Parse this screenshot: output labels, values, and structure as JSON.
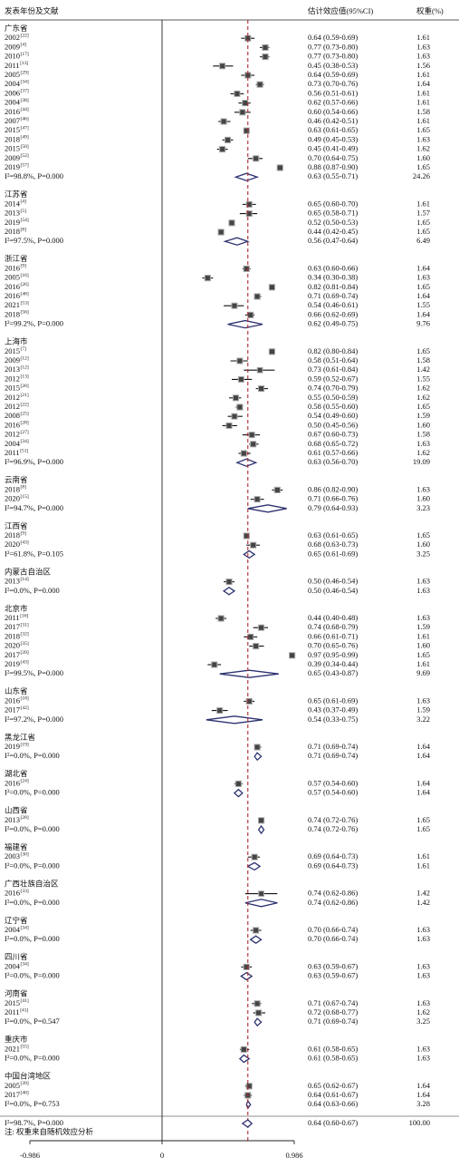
{
  "chart_data": {
    "type": "forest",
    "headers": {
      "study": "发表年份及文献",
      "effect": "估计效应值(95%CI)",
      "weight": "权重(%)"
    },
    "xlim": [
      -0.986,
      0.986
    ],
    "xticks": [
      -0.986,
      0,
      0.986
    ],
    "groups": [
      {
        "name": "广东省",
        "studies": [
          {
            "label": "2002",
            "ref": "[22]",
            "est": 0.64,
            "lo": 0.59,
            "hi": 0.69,
            "ci": "0.64 (0.59-0.69)",
            "weight": 1.61
          },
          {
            "label": "2009",
            "ref": "[4]",
            "est": 0.77,
            "lo": 0.73,
            "hi": 0.8,
            "ci": "0.77 (0.73-0.80)",
            "weight": 1.63
          },
          {
            "label": "2010",
            "ref": "[17]",
            "est": 0.77,
            "lo": 0.73,
            "hi": 0.8,
            "ci": "0.77 (0.73-0.80)",
            "weight": 1.63
          },
          {
            "label": "2011",
            "ref": "[13]",
            "est": 0.45,
            "lo": 0.38,
            "hi": 0.53,
            "ci": "0.45 (0.38-0.53)",
            "weight": 1.56
          },
          {
            "label": "2005",
            "ref": "[29]",
            "est": 0.64,
            "lo": 0.59,
            "hi": 0.69,
            "ci": "0.64 (0.59-0.69)",
            "weight": 1.61
          },
          {
            "label": "2004",
            "ref": "[34]",
            "est": 0.73,
            "lo": 0.7,
            "hi": 0.76,
            "ci": "0.73 (0.70-0.76)",
            "weight": 1.64
          },
          {
            "label": "2006",
            "ref": "[37]",
            "est": 0.56,
            "lo": 0.51,
            "hi": 0.61,
            "ci": "0.56 (0.51-0.61)",
            "weight": 1.61
          },
          {
            "label": "2004",
            "ref": "[38]",
            "est": 0.62,
            "lo": 0.57,
            "hi": 0.66,
            "ci": "0.62 (0.57-0.66)",
            "weight": 1.61
          },
          {
            "label": "2016",
            "ref": "[44]",
            "est": 0.6,
            "lo": 0.54,
            "hi": 0.66,
            "ci": "0.60 (0.54-0.66)",
            "weight": 1.58
          },
          {
            "label": "2007",
            "ref": "[46]",
            "est": 0.46,
            "lo": 0.42,
            "hi": 0.51,
            "ci": "0.46 (0.42-0.51)",
            "weight": 1.61
          },
          {
            "label": "2015",
            "ref": "[47]",
            "est": 0.63,
            "lo": 0.61,
            "hi": 0.65,
            "ci": "0.63 (0.61-0.65)",
            "weight": 1.65
          },
          {
            "label": "2018",
            "ref": "[49]",
            "est": 0.49,
            "lo": 0.45,
            "hi": 0.53,
            "ci": "0.49 (0.45-0.53)",
            "weight": 1.63
          },
          {
            "label": "2015",
            "ref": "[50]",
            "est": 0.45,
            "lo": 0.41,
            "hi": 0.49,
            "ci": "0.45 (0.41-0.49)",
            "weight": 1.62
          },
          {
            "label": "2009",
            "ref": "[52]",
            "est": 0.7,
            "lo": 0.64,
            "hi": 0.75,
            "ci": "0.70 (0.64-0.75)",
            "weight": 1.6,
            "weight_label": "1.60"
          },
          {
            "label": "2019",
            "ref": "[57]",
            "est": 0.88,
            "lo": 0.87,
            "hi": 0.9,
            "ci": "0.88 (0.87-0.90)",
            "weight": 1.65
          }
        ],
        "summary": {
          "het": "I²=98.8%, P=0.000",
          "est": 0.63,
          "lo": 0.55,
          "hi": 0.71,
          "ci": "0.63 (0.55-0.71)",
          "weight": 24.26
        }
      },
      {
        "name": "江苏省",
        "studies": [
          {
            "label": "2014",
            "ref": "[4]",
            "est": 0.65,
            "lo": 0.6,
            "hi": 0.7,
            "ci": "0.65 (0.60-0.70)",
            "weight": 1.61
          },
          {
            "label": "2013",
            "ref": "[5]",
            "est": 0.65,
            "lo": 0.58,
            "hi": 0.71,
            "ci": "0.65 (0.58-0.71)",
            "weight": 1.57
          },
          {
            "label": "2019",
            "ref": "[54]",
            "est": 0.52,
            "lo": 0.5,
            "hi": 0.53,
            "ci": "0.52 (0.50-0.53)",
            "weight": 1.65
          },
          {
            "label": "2018",
            "ref": "[8]",
            "est": 0.44,
            "lo": 0.42,
            "hi": 0.45,
            "ci": "0.44 (0.42-0.45)",
            "weight": 1.65
          }
        ],
        "summary": {
          "het": "I²=97.5%, P=0.000",
          "est": 0.56,
          "lo": 0.47,
          "hi": 0.64,
          "ci": "0.56 (0.47-0.64)",
          "weight": 6.49
        }
      },
      {
        "name": "浙江省",
        "studies": [
          {
            "label": "2016",
            "ref": "[9]",
            "est": 0.63,
            "lo": 0.6,
            "hi": 0.66,
            "ci": "0.63 (0.60-0.66)",
            "weight": 1.64
          },
          {
            "label": "2005",
            "ref": "[16]",
            "est": 0.34,
            "lo": 0.3,
            "hi": 0.38,
            "ci": "0.34 (0.30-0.38)",
            "weight": 1.63
          },
          {
            "label": "2016",
            "ref": "[26]",
            "est": 0.82,
            "lo": 0.81,
            "hi": 0.84,
            "ci": "0.82 (0.81-0.84)",
            "weight": 1.65
          },
          {
            "label": "2016",
            "ref": "[48]",
            "est": 0.71,
            "lo": 0.69,
            "hi": 0.74,
            "ci": "0.71 (0.69-0.74)",
            "weight": 1.64
          },
          {
            "label": "2021",
            "ref": "[53]",
            "est": 0.54,
            "lo": 0.46,
            "hi": 0.61,
            "ci": "0.54 (0.46-0.61)",
            "weight": 1.55
          },
          {
            "label": "2018",
            "ref": "[56]",
            "est": 0.66,
            "lo": 0.62,
            "hi": 0.69,
            "ci": "0.66 (0.62-0.69)",
            "weight": 1.64
          }
        ],
        "summary": {
          "het": "I²=99.2%, P=0.000",
          "est": 0.62,
          "lo": 0.49,
          "hi": 0.75,
          "ci": "0.62 (0.49-0.75)",
          "weight": 9.76
        }
      },
      {
        "name": "上海市",
        "studies": [
          {
            "label": "2015",
            "ref": "[7]",
            "est": 0.82,
            "lo": 0.8,
            "hi": 0.84,
            "ci": "0.82 (0.80-0.84)",
            "weight": 1.65
          },
          {
            "label": "2009",
            "ref": "[12]",
            "est": 0.58,
            "lo": 0.51,
            "hi": 0.64,
            "ci": "0.58 (0.51-0.64)",
            "weight": 1.58
          },
          {
            "label": "2013",
            "ref": "[12]",
            "est": 0.73,
            "lo": 0.61,
            "hi": 0.84,
            "ci": "0.73 (0.61-0.84)",
            "weight": 1.42
          },
          {
            "label": "2012",
            "ref": "[13]",
            "est": 0.59,
            "lo": 0.52,
            "hi": 0.67,
            "ci": "0.59 (0.52-0.67)",
            "weight": 1.55
          },
          {
            "label": "2015",
            "ref": "[20]",
            "est": 0.74,
            "lo": 0.7,
            "hi": 0.79,
            "ci": "0.74 (0.70-0.79)",
            "weight": 1.62
          },
          {
            "label": "2012",
            "ref": "[21]",
            "est": 0.55,
            "lo": 0.5,
            "hi": 0.59,
            "ci": "0.55 (0.50-0.59)",
            "weight": 1.62
          },
          {
            "label": "2012",
            "ref": "[22]",
            "est": 0.58,
            "lo": 0.55,
            "hi": 0.6,
            "ci": "0.58 (0.55-0.60)",
            "weight": 1.65
          },
          {
            "label": "2008",
            "ref": "[25]",
            "est": 0.54,
            "lo": 0.49,
            "hi": 0.6,
            "ci": "0.54 (0.49-0.60)",
            "weight": 1.59
          },
          {
            "label": "2016",
            "ref": "[28]",
            "est": 0.5,
            "lo": 0.45,
            "hi": 0.56,
            "ci": "0.50 (0.45-0.56)",
            "weight": 1.6,
            "weight_label": "1.60"
          },
          {
            "label": "2012",
            "ref": "[27]",
            "est": 0.67,
            "lo": 0.6,
            "hi": 0.73,
            "ci": "0.67 (0.60-0.73)",
            "weight": 1.58
          },
          {
            "label": "2004",
            "ref": "[34]",
            "est": 0.68,
            "lo": 0.65,
            "hi": 0.72,
            "ci": "0.68 (0.65-0.72)",
            "weight": 1.63
          },
          {
            "label": "2011",
            "ref": "[51]",
            "est": 0.61,
            "lo": 0.57,
            "hi": 0.66,
            "ci": "0.61 (0.57-0.66)",
            "weight": 1.62
          }
        ],
        "summary": {
          "het": "I²=96.9%, P=0.000",
          "est": 0.63,
          "lo": 0.56,
          "hi": 0.7,
          "ci": "0.63 (0.56-0.70)",
          "weight": 19.09
        }
      },
      {
        "name": "云南省",
        "studies": [
          {
            "label": "2018",
            "ref": "[8]",
            "est": 0.86,
            "lo": 0.82,
            "hi": 0.9,
            "ci": "0.86 (0.82-0.90)",
            "weight": 1.63
          },
          {
            "label": "2020",
            "ref": "[15]",
            "est": 0.71,
            "lo": 0.66,
            "hi": 0.76,
            "ci": "0.71 (0.66-0.76)",
            "weight": 1.6,
            "weight_label": "1.60"
          }
        ],
        "summary": {
          "het": "I²=94.7%, P=0.000",
          "est": 0.79,
          "lo": 0.64,
          "hi": 0.93,
          "ci": "0.79 (0.64-0.93)",
          "weight": 3.23
        }
      },
      {
        "name": "江西省",
        "studies": [
          {
            "label": "2018",
            "ref": "[9]",
            "est": 0.63,
            "lo": 0.61,
            "hi": 0.65,
            "ci": "0.63 (0.61-0.65)",
            "weight": 1.65
          },
          {
            "label": "2020",
            "ref": "[43]",
            "est": 0.68,
            "lo": 0.63,
            "hi": 0.73,
            "ci": "0.68 (0.63-0.73)",
            "weight": 1.6,
            "weight_label": "1.60"
          }
        ],
        "summary": {
          "het": "I²=61.8%, P=0.105",
          "est": 0.65,
          "lo": 0.61,
          "hi": 0.69,
          "ci": "0.65 (0.61-0.69)",
          "weight": 3.25
        }
      },
      {
        "name": "内蒙古自治区",
        "studies": [
          {
            "label": "2013",
            "ref": "[14]",
            "est": 0.5,
            "lo": 0.46,
            "hi": 0.54,
            "ci": "0.50 (0.46-0.54)",
            "weight": 1.63
          }
        ],
        "summary": {
          "het": "I²=0.0%, P=0.000",
          "est": 0.5,
          "lo": 0.46,
          "hi": 0.54,
          "ci": "0.50 (0.46-0.54)",
          "weight": 1.63
        }
      },
      {
        "name": "北京市",
        "studies": [
          {
            "label": "2011",
            "ref": "[16]",
            "est": 0.44,
            "lo": 0.4,
            "hi": 0.48,
            "ci": "0.44 (0.40-0.48)",
            "weight": 1.63
          },
          {
            "label": "2017",
            "ref": "[31]",
            "est": 0.74,
            "lo": 0.68,
            "hi": 0.79,
            "ci": "0.74 (0.68-0.79)",
            "weight": 1.59
          },
          {
            "label": "2018",
            "ref": "[32]",
            "est": 0.66,
            "lo": 0.61,
            "hi": 0.71,
            "ci": "0.66 (0.61-0.71)",
            "weight": 1.61
          },
          {
            "label": "2020",
            "ref": "[35]",
            "est": 0.7,
            "lo": 0.65,
            "hi": 0.76,
            "ci": "0.70 (0.65-0.76)",
            "weight": 1.6,
            "weight_label": "1.60"
          },
          {
            "label": "2017",
            "ref": "[39]",
            "est": 0.97,
            "lo": 0.95,
            "hi": 0.99,
            "ci": "0.97 (0.95-0.99)",
            "weight": 1.65
          },
          {
            "label": "2019",
            "ref": "[43]",
            "est": 0.39,
            "lo": 0.34,
            "hi": 0.44,
            "ci": "0.39 (0.34-0.44)",
            "weight": 1.61
          }
        ],
        "summary": {
          "het": "I²=99.5%, P=0.000",
          "est": 0.65,
          "lo": 0.43,
          "hi": 0.87,
          "ci": "0.65 (0.43-0.87)",
          "weight": 9.69
        }
      },
      {
        "name": "山东省",
        "studies": [
          {
            "label": "2016",
            "ref": "[18]",
            "est": 0.65,
            "lo": 0.61,
            "hi": 0.69,
            "ci": "0.65 (0.61-0.69)",
            "weight": 1.63
          },
          {
            "label": "2017",
            "ref": "[42]",
            "est": 0.43,
            "lo": 0.37,
            "hi": 0.49,
            "ci": "0.43 (0.37-0.49)",
            "weight": 1.59
          }
        ],
        "summary": {
          "het": "I²=97.2%, P=0.000",
          "est": 0.54,
          "lo": 0.33,
          "hi": 0.75,
          "ci": "0.54 (0.33-0.75)",
          "weight": 3.22
        }
      },
      {
        "name": "黑龙江省",
        "studies": [
          {
            "label": "2019",
            "ref": "[19]",
            "est": 0.71,
            "lo": 0.69,
            "hi": 0.74,
            "ci": "0.71 (0.69-0.74)",
            "weight": 1.64
          }
        ],
        "summary": {
          "het": "I²=0.0%, P=0.000",
          "est": 0.71,
          "lo": 0.69,
          "hi": 0.74,
          "ci": "0.71 (0.69-0.74)",
          "weight": 1.64
        }
      },
      {
        "name": "湖北省",
        "studies": [
          {
            "label": "2016",
            "ref": "[24]",
            "est": 0.57,
            "lo": 0.54,
            "hi": 0.6,
            "ci": "0.57 (0.54-0.60)",
            "weight": 1.64
          }
        ],
        "summary": {
          "het": "I²=0.0%, P=0.000",
          "est": 0.57,
          "lo": 0.54,
          "hi": 0.6,
          "ci": "0.57 (0.54-0.60)",
          "weight": 1.64
        }
      },
      {
        "name": "山西省",
        "studies": [
          {
            "label": "2013",
            "ref": "[28]",
            "est": 0.74,
            "lo": 0.72,
            "hi": 0.76,
            "ci": "0.74 (0.72-0.76)",
            "weight": 1.65
          }
        ],
        "summary": {
          "het": "I²=0.0%, P=0.000",
          "est": 0.74,
          "lo": 0.72,
          "hi": 0.76,
          "ci": "0.74 (0.72-0.76)",
          "weight": 1.65
        }
      },
      {
        "name": "福建省",
        "studies": [
          {
            "label": "2003",
            "ref": "[30]",
            "est": 0.69,
            "lo": 0.64,
            "hi": 0.73,
            "ci": "0.69 (0.64-0.73)",
            "weight": 1.61
          }
        ],
        "summary": {
          "het": "I²=0.0%, P=0.000",
          "est": 0.69,
          "lo": 0.64,
          "hi": 0.73,
          "ci": "0.69 (0.64-0.73)",
          "weight": 1.61
        }
      },
      {
        "name": "广西壮族自治区",
        "studies": [
          {
            "label": "2016",
            "ref": "[33]",
            "est": 0.74,
            "lo": 0.62,
            "hi": 0.86,
            "ci": "0.74 (0.62-0.86)",
            "weight": 1.42
          }
        ],
        "summary": {
          "het": "I²=0.0%, P=0.000",
          "est": 0.74,
          "lo": 0.62,
          "hi": 0.86,
          "ci": "0.74 (0.62-0.86)",
          "weight": 1.42
        }
      },
      {
        "name": "辽宁省",
        "studies": [
          {
            "label": "2004",
            "ref": "[34]",
            "est": 0.7,
            "lo": 0.66,
            "hi": 0.74,
            "ci": "0.70 (0.66-0.74)",
            "weight": 1.63
          }
        ],
        "summary": {
          "het": "I²=0.0%, P=0.000",
          "est": 0.7,
          "lo": 0.66,
          "hi": 0.74,
          "ci": "0.70 (0.66-0.74)",
          "weight": 1.63
        }
      },
      {
        "name": "四川省",
        "studies": [
          {
            "label": "2004",
            "ref": "[34]",
            "est": 0.63,
            "lo": 0.59,
            "hi": 0.67,
            "ci": "0.63 (0.59-0.67)",
            "weight": 1.63
          }
        ],
        "summary": {
          "het": "I²=0.0%, P=0.000",
          "est": 0.63,
          "lo": 0.59,
          "hi": 0.67,
          "ci": "0.63 (0.59-0.67)",
          "weight": 1.63
        }
      },
      {
        "name": "河南省",
        "studies": [
          {
            "label": "2015",
            "ref": "[41]",
            "est": 0.71,
            "lo": 0.67,
            "hi": 0.74,
            "ci": "0.71 (0.67-0.74)",
            "weight": 1.63
          },
          {
            "label": "2011",
            "ref": "[41]",
            "est": 0.72,
            "lo": 0.68,
            "hi": 0.77,
            "ci": "0.72 (0.68-0.77)",
            "weight": 1.62
          }
        ],
        "summary": {
          "het": "I²=0.0%, P=0.547",
          "est": 0.71,
          "lo": 0.69,
          "hi": 0.74,
          "ci": "0.71 (0.69-0.74)",
          "weight": 3.25
        }
      },
      {
        "name": "重庆市",
        "studies": [
          {
            "label": "2021",
            "ref": "[55]",
            "est": 0.61,
            "lo": 0.58,
            "hi": 0.65,
            "ci": "0.61 (0.58-0.65)",
            "weight": 1.63
          }
        ],
        "summary": {
          "het": "I²=0.0%, P=0.000",
          "est": 0.61,
          "lo": 0.58,
          "hi": 0.65,
          "ci": "0.61 (0.58-0.65)",
          "weight": 1.63
        }
      },
      {
        "name": "中国台湾地区",
        "studies": [
          {
            "label": "2005",
            "ref": "[39]",
            "est": 0.65,
            "lo": 0.62,
            "hi": 0.67,
            "ci": "0.65 (0.62-0.67)",
            "weight": 1.64
          },
          {
            "label": "2017",
            "ref": "[40]",
            "est": 0.64,
            "lo": 0.61,
            "hi": 0.67,
            "ci": "0.64 (0.61-0.67)",
            "weight": 1.64
          }
        ],
        "summary": {
          "het": "I²=0.0%, P=0.753",
          "est": 0.64,
          "lo": 0.63,
          "hi": 0.66,
          "ci": "0.64 (0.63-0.66)",
          "weight": 3.28
        }
      }
    ],
    "overall": {
      "het": "I²=98.7%, P=0.000",
      "est": 0.64,
      "lo": 0.6,
      "hi": 0.67,
      "ci": "0.64 (0.60-0.67)",
      "weight": 100,
      "weight_label": "100.00"
    },
    "note": "注: 权重来自随机效应分析"
  }
}
